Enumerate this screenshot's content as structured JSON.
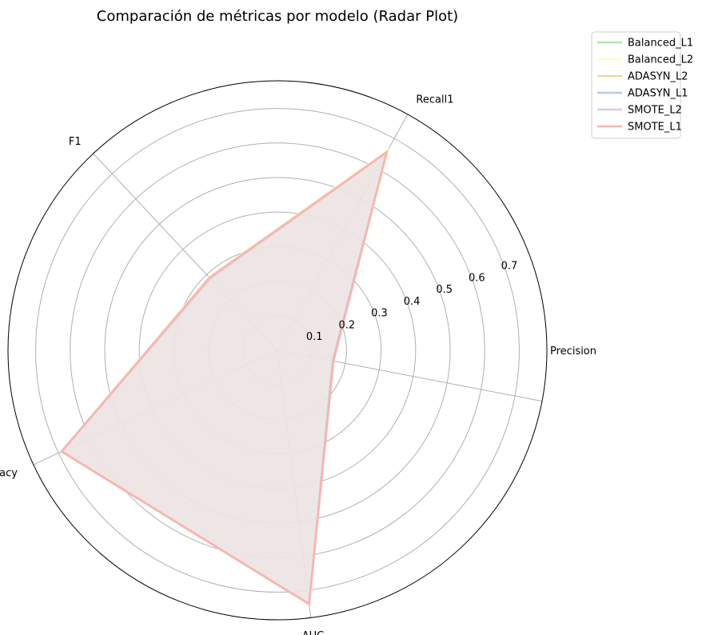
{
  "chart_data": {
    "type": "radar",
    "title": "Comparación de métricas por modelo (Radar Plot)",
    "axes": [
      "Precision",
      "Recall1",
      "F1",
      "Accuracy",
      "AUC"
    ],
    "radial_ticks": [
      0.1,
      0.2,
      0.3,
      0.4,
      0.5,
      0.6,
      0.7
    ],
    "rlim": [
      0,
      0.78
    ],
    "grid": true,
    "legend_position": "top-right, outside",
    "fill_color": "#ede6e1",
    "series": [
      {
        "name": "Balanced_L1",
        "color": "#b8e3b0",
        "values": [
          0.165,
          0.66,
          0.29,
          0.69,
          0.74
        ]
      },
      {
        "name": "Balanced_L2",
        "color": "#fefdc4",
        "values": [
          0.165,
          0.66,
          0.29,
          0.69,
          0.74
        ]
      },
      {
        "name": "ADASYN_L2",
        "color": "#fcd19b",
        "values": [
          0.165,
          0.655,
          0.285,
          0.69,
          0.74
        ]
      },
      {
        "name": "ADASYN_L1",
        "color": "#b3cde3",
        "values": [
          0.163,
          0.655,
          0.285,
          0.69,
          0.74
        ]
      },
      {
        "name": "SMOTE_L2",
        "color": "#decbe4",
        "values": [
          0.165,
          0.655,
          0.285,
          0.69,
          0.74
        ]
      },
      {
        "name": "SMOTE_L1",
        "color": "#fbb4ae",
        "values": [
          0.165,
          0.655,
          0.288,
          0.69,
          0.74
        ]
      }
    ]
  }
}
